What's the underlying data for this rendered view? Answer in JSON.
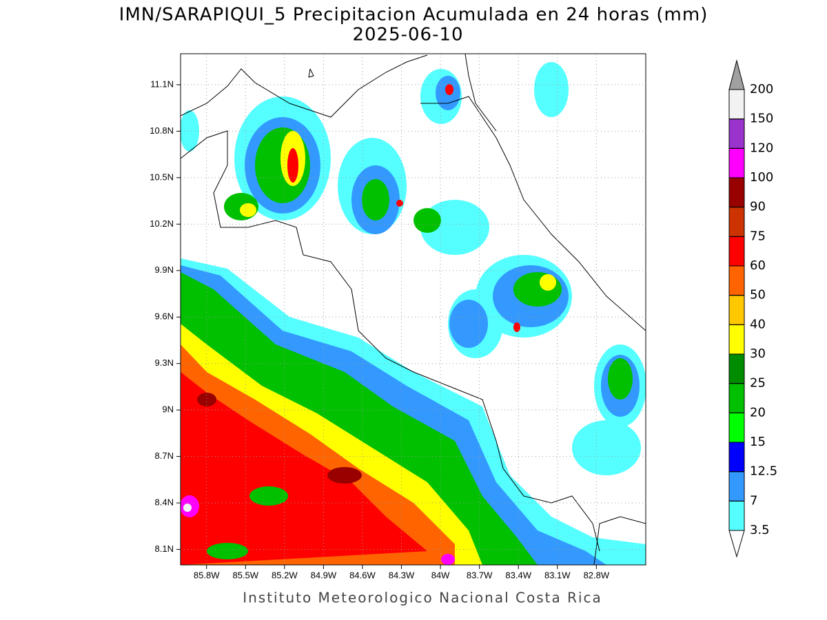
{
  "title": "IMN/SARAPIQUI_5 Precipitacion Acumulada en 24 horas (mm)",
  "subtitle": "2025-06-10",
  "map": {
    "xlim": [
      -86.0,
      -82.42
    ],
    "ylim": [
      8.0,
      11.3
    ],
    "grid": true,
    "xticks": [
      {
        "value": -85.8,
        "label": "85.8W"
      },
      {
        "value": -85.5,
        "label": "85.5W"
      },
      {
        "value": -85.2,
        "label": "85.2W"
      },
      {
        "value": -84.9,
        "label": "84.9W"
      },
      {
        "value": -84.6,
        "label": "84.6W"
      },
      {
        "value": -84.3,
        "label": "84.3W"
      },
      {
        "value": -84.0,
        "label": "84W"
      },
      {
        "value": -83.7,
        "label": "83.7W"
      },
      {
        "value": -83.4,
        "label": "83.4W"
      },
      {
        "value": -83.1,
        "label": "83.1W"
      },
      {
        "value": -82.8,
        "label": "82.8W"
      }
    ],
    "yticks": [
      {
        "value": 8.1,
        "label": "8.1N"
      },
      {
        "value": 8.4,
        "label": "8.4N"
      },
      {
        "value": 8.7,
        "label": "8.7N"
      },
      {
        "value": 9.0,
        "label": "9N"
      },
      {
        "value": 9.3,
        "label": "9.3N"
      },
      {
        "value": 9.6,
        "label": "9.6N"
      },
      {
        "value": 9.9,
        "label": "9.9N"
      },
      {
        "value": 10.2,
        "label": "10.2N"
      },
      {
        "value": 10.5,
        "label": "10.5N"
      },
      {
        "value": 10.8,
        "label": "10.8N"
      },
      {
        "value": 11.1,
        "label": "11.1N"
      }
    ]
  },
  "colorbar": {
    "levels": [
      3.5,
      7,
      12.5,
      15,
      20,
      25,
      30,
      40,
      50,
      60,
      75,
      90,
      100,
      120,
      150,
      200
    ],
    "colors": [
      "#55ffff",
      "#3399ff",
      "#0000ff",
      "#00ff00",
      "#00c000",
      "#008c00",
      "#ffff00",
      "#ffc800",
      "#ff6400",
      "#ff0000",
      "#cc3300",
      "#990000",
      "#ff00ff",
      "#9933cc",
      "#f2f2f2"
    ],
    "under_color": "#ffffff",
    "over_color": "#a0a0a0"
  },
  "footer": "Instituto Meteorologico Nacional Costa Rica"
}
